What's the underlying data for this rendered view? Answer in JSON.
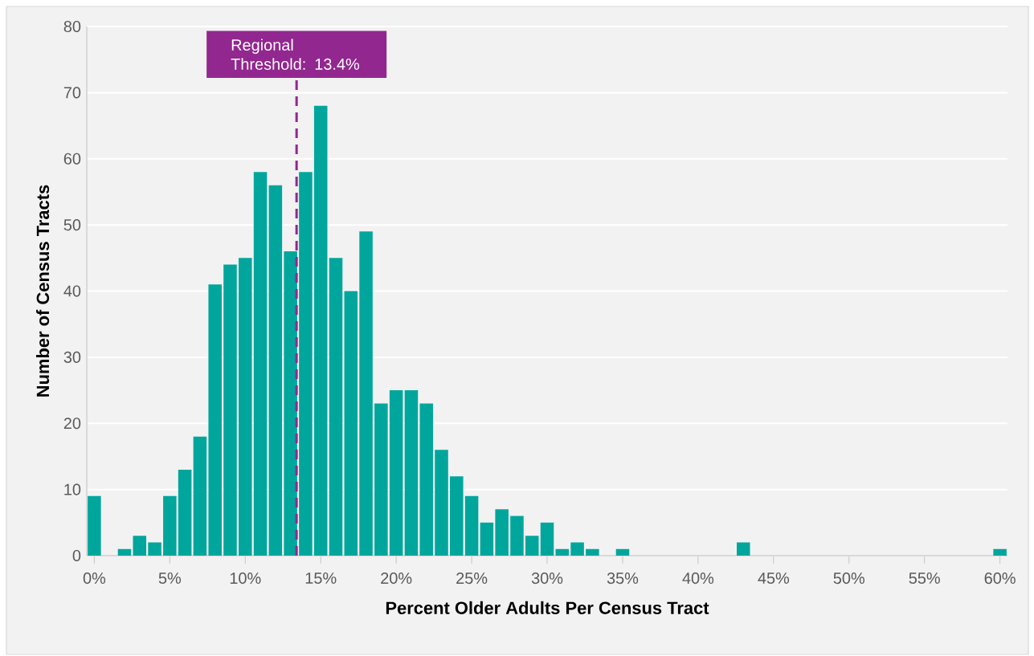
{
  "chart_data": {
    "type": "histogram",
    "xlabel": "Percent Older Adults Per Census Tract",
    "ylabel": "Number of Census Tracts",
    "bins": [
      -0.5,
      0.5,
      1.5,
      2.5,
      3.5,
      4.5,
      5.5,
      6.5,
      7.5,
      8.5,
      9.5,
      10.5,
      11.5,
      12.5,
      13.5,
      14.5,
      15.5,
      16.5,
      17.5,
      18.5,
      19.5,
      20.5,
      21.5,
      22.5,
      23.5,
      24.5,
      25.5,
      26.5,
      27.5,
      28.5,
      29.5,
      30.5,
      31.5,
      32.5,
      33.5,
      34.5,
      35.5,
      36.5,
      37.5,
      38.5,
      39.5,
      40.5,
      41.5,
      42.5,
      43.5,
      44.5,
      45.5,
      46.5,
      47.5,
      48.5,
      49.5,
      50.5,
      51.5,
      52.5,
      53.5,
      54.5,
      55.5,
      56.5,
      57.5,
      58.5,
      59.5,
      60.5
    ],
    "values": [
      9,
      0,
      1,
      3,
      2,
      9,
      13,
      18,
      41,
      44,
      45,
      58,
      56,
      46,
      58,
      68,
      45,
      40,
      49,
      23,
      25,
      25,
      23,
      16,
      12,
      9,
      5,
      7,
      6,
      3,
      5,
      1,
      2,
      1,
      0,
      1,
      0,
      0,
      0,
      0,
      0,
      0,
      0,
      2,
      0,
      0,
      0,
      0,
      0,
      0,
      0,
      0,
      0,
      0,
      0,
      0,
      0,
      0,
      0,
      0,
      1
    ],
    "color": "#00a69c",
    "xlim": [
      -0.5,
      60.5
    ],
    "ylim": [
      0,
      80
    ],
    "xticks": [
      {
        "value": 0,
        "label": "0%"
      },
      {
        "value": 5,
        "label": "5%"
      },
      {
        "value": 10,
        "label": "10%"
      },
      {
        "value": 15,
        "label": "15%"
      },
      {
        "value": 20,
        "label": "20%"
      },
      {
        "value": 25,
        "label": "25%"
      },
      {
        "value": 30,
        "label": "30%"
      },
      {
        "value": 35,
        "label": "35%"
      },
      {
        "value": 40,
        "label": "40%"
      },
      {
        "value": 45,
        "label": "45%"
      },
      {
        "value": 50,
        "label": "50%"
      },
      {
        "value": 55,
        "label": "55%"
      },
      {
        "value": 60,
        "label": "60%"
      }
    ],
    "yticks": [
      0,
      10,
      20,
      30,
      40,
      50,
      60,
      70,
      80
    ],
    "grid": "y",
    "ref_lines": [
      {
        "axis": "x",
        "value": 13.4,
        "label": "Regional Threshold: 13.4%",
        "color": "#92278f",
        "line_style": "dashed"
      }
    ]
  }
}
